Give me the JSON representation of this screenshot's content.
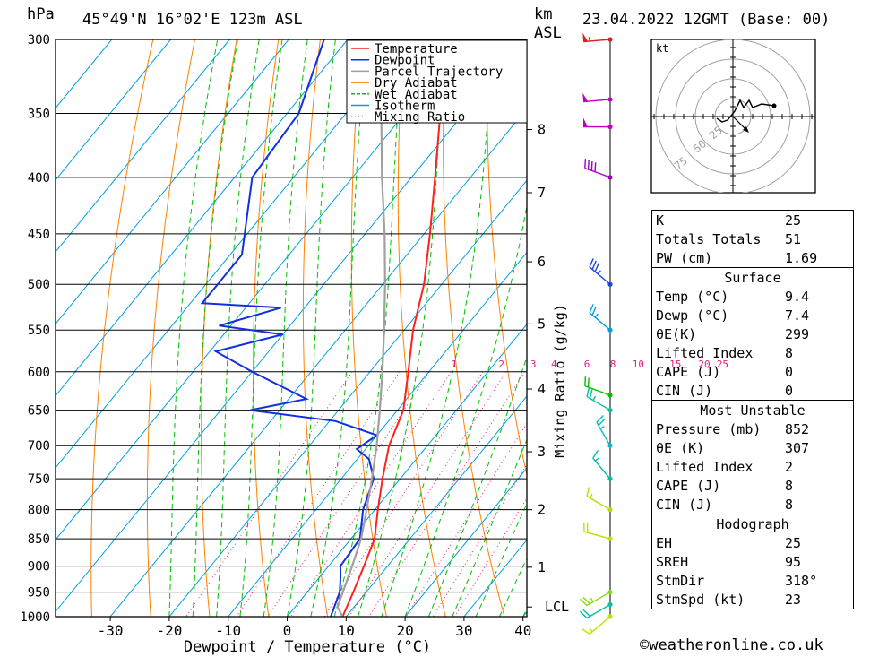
{
  "header": {
    "units_pressure": "hPa",
    "location": "45°49'N  16°02'E  123m  ASL",
    "units_km": "km",
    "units_asl": "ASL",
    "datetime": "23.04.2022  12GMT  (Base: 00)"
  },
  "chart_data": {
    "type": "line",
    "title": "45°49'N  16°02'E  123m  ASL",
    "xlabel": "Dewpoint / Temperature (°C)",
    "ylabel": "hPa",
    "xlim": [
      -40,
      40
    ],
    "x_ticks": [
      -30,
      -20,
      -10,
      0,
      10,
      20,
      30,
      40
    ],
    "pressure_levels": [
      300,
      350,
      400,
      450,
      500,
      550,
      600,
      650,
      700,
      750,
      800,
      850,
      900,
      950,
      1000
    ],
    "km_ticks": [
      {
        "label": "8",
        "p": 362
      },
      {
        "label": "7",
        "p": 413
      },
      {
        "label": "6",
        "p": 477
      },
      {
        "label": "5",
        "p": 543
      },
      {
        "label": "4",
        "p": 622
      },
      {
        "label": "3",
        "p": 709
      },
      {
        "label": "2",
        "p": 800
      },
      {
        "label": "1",
        "p": 902
      }
    ],
    "lcl": {
      "label": "LCL",
      "p": 980
    },
    "mixing_ratio_label": "Mixing Ratio (g/kg)",
    "mixing_ratios": [
      {
        "label": "1",
        "t600": -5.7
      },
      {
        "label": "2",
        "t600": 2.3
      },
      {
        "label": "3",
        "t600": 7.7
      },
      {
        "label": "4",
        "t600": 11.2
      },
      {
        "label": "6",
        "t600": 16.8
      },
      {
        "label": "8",
        "t600": 21.2
      },
      {
        "label": "10",
        "t600": 25.5
      },
      {
        "label": "15",
        "t600": 31.8
      },
      {
        "label": "20",
        "t600": 36.7
      },
      {
        "label": "25",
        "t600": 39.8
      }
    ],
    "legend": [
      "Temperature",
      "Dewpoint",
      "Parcel Trajectory",
      "Dry Adiabat",
      "Wet Adiabat",
      "Isotherm",
      "Mixing Ratio"
    ],
    "legend_colors": [
      "#ff2020",
      "#1030e0",
      "#a0a0a0",
      "#ff8000",
      "#00c000",
      "#00a0e0",
      "#e02080"
    ],
    "series": [
      {
        "name": "Temperature",
        "points": [
          [
            1000,
            9.4
          ],
          [
            950,
            7.8
          ],
          [
            900,
            6.0
          ],
          [
            850,
            4.0
          ],
          [
            800,
            0.5
          ],
          [
            750,
            -3.0
          ],
          [
            700,
            -6.5
          ],
          [
            650,
            -9.0
          ],
          [
            600,
            -13.5
          ],
          [
            550,
            -18.5
          ],
          [
            500,
            -23.0
          ],
          [
            450,
            -29.0
          ],
          [
            400,
            -36.0
          ],
          [
            350,
            -44.0
          ],
          [
            300,
            -50.0
          ]
        ]
      },
      {
        "name": "Dewpoint",
        "points": [
          [
            1000,
            7.4
          ],
          [
            950,
            5.5
          ],
          [
            920,
            3.5
          ],
          [
            900,
            2.0
          ],
          [
            850,
            1.5
          ],
          [
            800,
            -2.0
          ],
          [
            750,
            -4.5
          ],
          [
            720,
            -8.0
          ],
          [
            705,
            -11.5
          ],
          [
            685,
            -10.0
          ],
          [
            665,
            -19.0
          ],
          [
            650,
            -35.0
          ],
          [
            635,
            -27.0
          ],
          [
            600,
            -40.0
          ],
          [
            575,
            -49.0
          ],
          [
            555,
            -40.0
          ],
          [
            545,
            -52.0
          ],
          [
            525,
            -44.0
          ],
          [
            520,
            -58.0
          ],
          [
            500,
            -58.0
          ],
          [
            470,
            -58.0
          ],
          [
            400,
            -67.0
          ],
          [
            350,
            -68.0
          ],
          [
            300,
            -74.0
          ]
        ]
      },
      {
        "name": "Parcel Trajectory",
        "points": [
          [
            1000,
            9.4
          ],
          [
            980,
            7.2
          ],
          [
            900,
            4.0
          ],
          [
            850,
            1.7
          ],
          [
            800,
            -1.4
          ],
          [
            750,
            -4.8
          ],
          [
            700,
            -8.6
          ],
          [
            650,
            -13.0
          ],
          [
            600,
            -17.9
          ],
          [
            550,
            -23.4
          ],
          [
            500,
            -29.6
          ],
          [
            450,
            -36.7
          ],
          [
            400,
            -45.0
          ],
          [
            350,
            -54.0
          ],
          [
            300,
            -64.5
          ]
        ]
      }
    ],
    "wind_barbs": [
      {
        "p": 1000,
        "dir": 230,
        "spd": 15,
        "color": "#c0e000"
      },
      {
        "p": 975,
        "dir": 240,
        "spd": 20,
        "color": "#00c0a0"
      },
      {
        "p": 950,
        "dir": 240,
        "spd": 25,
        "color": "#80e000"
      },
      {
        "p": 850,
        "dir": 285,
        "spd": 20,
        "color": "#c0e000"
      },
      {
        "p": 800,
        "dir": 300,
        "spd": 15,
        "color": "#b0e000"
      },
      {
        "p": 750,
        "dir": 320,
        "spd": 15,
        "color": "#00c0a0"
      },
      {
        "p": 700,
        "dir": 330,
        "spd": 25,
        "color": "#00c0c0"
      },
      {
        "p": 650,
        "dir": 300,
        "spd": 25,
        "color": "#00c0a0"
      },
      {
        "p": 630,
        "dir": 290,
        "spd": 20,
        "color": "#00c000"
      },
      {
        "p": 550,
        "dir": 310,
        "spd": 25,
        "color": "#00a0e0"
      },
      {
        "p": 500,
        "dir": 310,
        "spd": 35,
        "color": "#2040e0"
      },
      {
        "p": 400,
        "dir": 290,
        "spd": 40,
        "color": "#a000c0"
      },
      {
        "p": 360,
        "dir": 270,
        "spd": 50,
        "color": "#c000c0"
      },
      {
        "p": 340,
        "dir": 265,
        "spd": 50,
        "color": "#c000c0"
      },
      {
        "p": 300,
        "dir": 265,
        "spd": 55,
        "color": "#e02020"
      }
    ],
    "hodograph": {
      "unit_label": "kt",
      "ring_labels": [
        "25",
        "50",
        "75"
      ],
      "points": [
        [
          -18,
          2
        ],
        [
          -12,
          6
        ],
        [
          -6,
          4
        ],
        [
          2,
          -6
        ],
        [
          8,
          -18
        ],
        [
          12,
          -10
        ],
        [
          18,
          -18
        ],
        [
          22,
          -10
        ],
        [
          32,
          -14
        ],
        [
          46,
          -12
        ]
      ]
    }
  },
  "indices": {
    "rows": [
      {
        "k": "K",
        "v": "25"
      },
      {
        "k": "Totals Totals",
        "v": "51"
      },
      {
        "k": "PW (cm)",
        "v": "1.69"
      }
    ],
    "surface": {
      "title": "Surface",
      "rows": [
        {
          "k": "Temp (°C)",
          "v": "9.4"
        },
        {
          "k": "Dewp (°C)",
          "v": "7.4"
        },
        {
          "k": "θE(K)",
          "v": "299"
        },
        {
          "k": "Lifted Index",
          "v": "8"
        },
        {
          "k": "CAPE (J)",
          "v": "0"
        },
        {
          "k": "CIN (J)",
          "v": "0"
        }
      ]
    },
    "most_unstable": {
      "title": "Most Unstable",
      "rows": [
        {
          "k": "Pressure (mb)",
          "v": "852"
        },
        {
          "k": "θE (K)",
          "v": "307"
        },
        {
          "k": "Lifted Index",
          "v": "2"
        },
        {
          "k": "CAPE (J)",
          "v": "8"
        },
        {
          "k": "CIN (J)",
          "v": "8"
        }
      ]
    },
    "hodograph": {
      "title": "Hodograph",
      "rows": [
        {
          "k": "EH",
          "v": "25"
        },
        {
          "k": "SREH",
          "v": "95"
        },
        {
          "k": "StmDir",
          "v": "318°"
        },
        {
          "k": "StmSpd (kt)",
          "v": "23"
        }
      ]
    }
  },
  "credit": "©weatheronline.co.uk"
}
